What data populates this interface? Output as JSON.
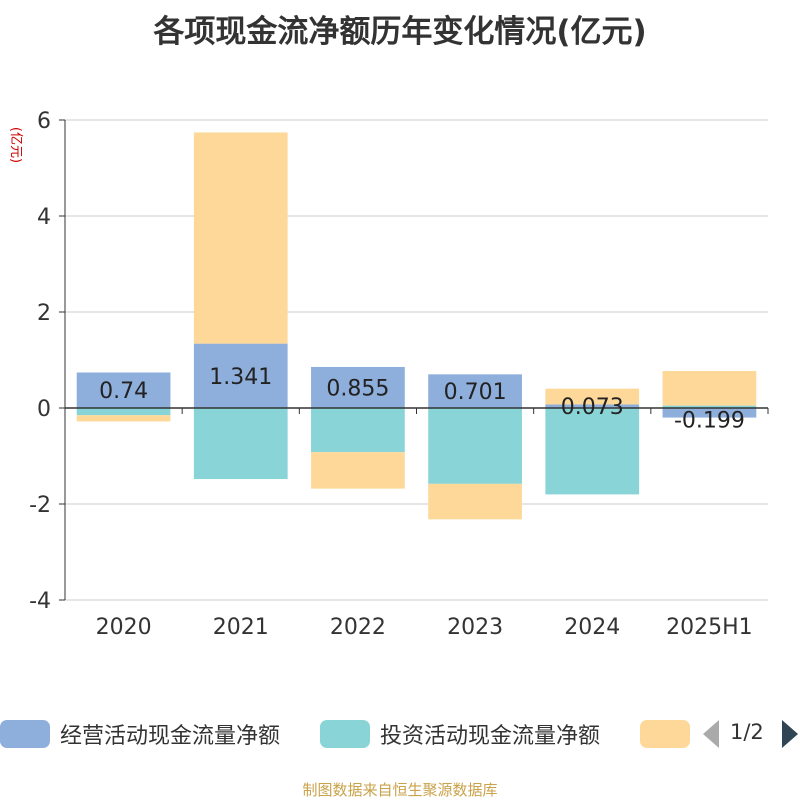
{
  "chart_data": {
    "type": "bar",
    "stacked": true,
    "title": "各项现金流净额历年变化情况(亿元)",
    "ylabel": "(亿元)",
    "ylim": [
      -4,
      6
    ],
    "yticks": [
      -4,
      -2,
      0,
      2,
      4,
      6
    ],
    "grid": true,
    "categories": [
      "2020",
      "2021",
      "2022",
      "2023",
      "2024",
      "2025H1"
    ],
    "series": [
      {
        "name": "经营活动现金流量净额",
        "color": "#8eaedb",
        "values": [
          0.74,
          1.341,
          0.855,
          0.701,
          0.073,
          -0.199
        ],
        "labels": [
          "0.74",
          "1.341",
          "0.855",
          "0.701",
          "0.073",
          "-0.199"
        ]
      },
      {
        "name": "投资活动现金流量净额",
        "color": "#88d4d7",
        "values": [
          -0.15,
          -1.48,
          -0.92,
          -1.58,
          -1.8,
          0.05
        ]
      },
      {
        "name": "",
        "color": "#fdd899",
        "values": [
          -0.13,
          4.4,
          -0.76,
          -0.74,
          0.33,
          0.72
        ]
      }
    ],
    "legend_position": "bottom"
  },
  "legend": {
    "page": "1/2"
  },
  "footer": "制图数据来自恒生聚源数据库"
}
